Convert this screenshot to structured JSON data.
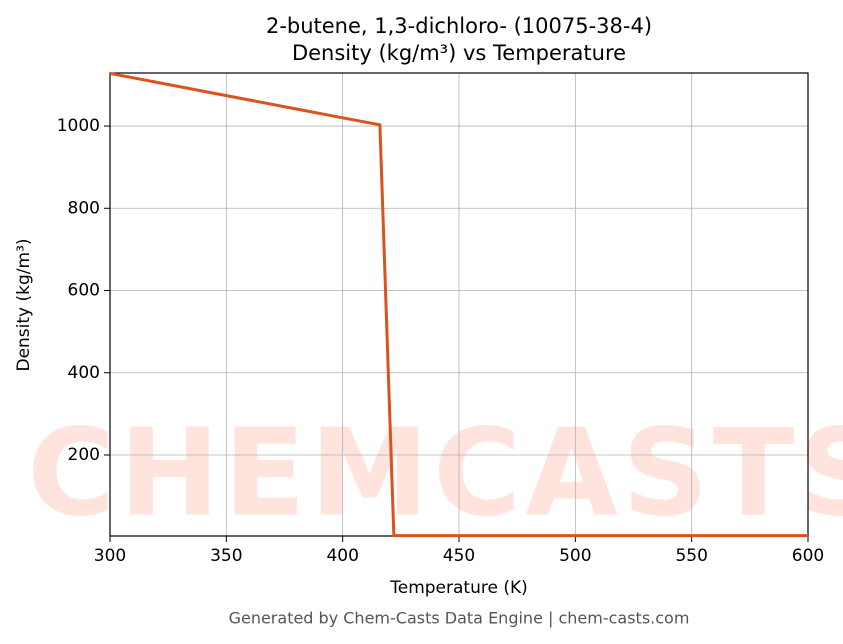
{
  "chart_data": {
    "type": "line",
    "title": "2-butene, 1,3-dichloro- (10075-38-4)",
    "subtitle": "Density (kg/m³) vs Temperature",
    "xlabel": "Temperature (K)",
    "ylabel": "Density (kg/m³)",
    "footer": "Generated by Chem-Casts Data Engine | chem-casts.com",
    "watermark": "CHEMCASTS",
    "x": [
      300,
      325,
      350,
      375,
      400,
      416,
      422,
      450,
      500,
      550,
      600
    ],
    "series": [
      {
        "name": "Density",
        "color": "#d9531e",
        "values": [
          1128,
          1101,
          1074,
          1047,
          1020,
          1003,
          4,
          4,
          4,
          4,
          4
        ]
      }
    ],
    "xlim": [
      300,
      600
    ],
    "xticks": [
      300,
      350,
      400,
      450,
      500,
      550,
      600
    ],
    "ylim": [
      3,
      1129
    ],
    "yticks": [
      200,
      400,
      600,
      800,
      1000
    ],
    "grid": true
  }
}
